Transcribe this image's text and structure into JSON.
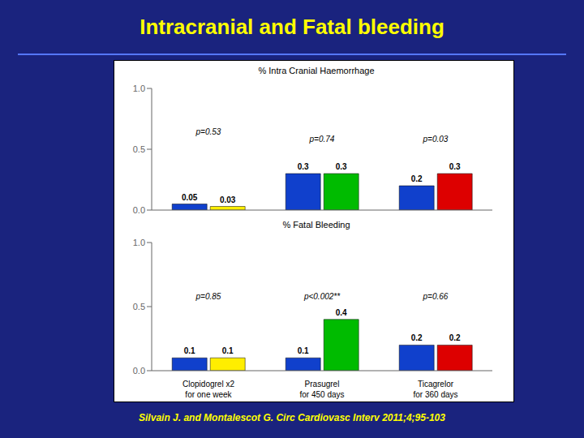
{
  "title": "Intracranial and Fatal bleeding",
  "subtitle": "Silvain J. and Montalescot G. Circ Cardiovasc Interv 2011;4;95-103",
  "chart_data": [
    {
      "type": "bar",
      "title": "% Intra Cranial Haemorrhage",
      "categories": [
        null,
        null,
        null
      ],
      "series": [
        {
          "values": [
            0.05,
            0.3,
            0.2
          ],
          "colors": [
            "#1040CC",
            "#1040CC",
            "#1040CC"
          ]
        },
        {
          "values": [
            0.03,
            0.3,
            0.3
          ],
          "colors": [
            "#FFEE00",
            "#00BB00",
            "#DD0000"
          ]
        }
      ],
      "data_labels": true,
      "grid": false,
      "annotations": [
        {
          "text": "p=0.53",
          "y": 0.58
        },
        {
          "text": "p=0.74",
          "y": 0.52
        },
        {
          "text": "p=0.03",
          "y": 0.52
        }
      ],
      "ylim": [
        0,
        1.0
      ],
      "yticks": [
        {
          "value": 0.0,
          "label": "0.0"
        },
        {
          "value": 0.5,
          "label": "0.5"
        },
        {
          "value": 1.0,
          "label": "1.0"
        }
      ]
    },
    {
      "type": "bar",
      "title": "% Fatal Bleeding",
      "categories": [
        "Clopidogrel x2\nfor one week",
        "Prasugrel\nfor 450 days",
        "Ticagrelor\nfor 360 days"
      ],
      "series": [
        {
          "values": [
            0.1,
            0.1,
            0.2
          ],
          "colors": [
            "#1040CC",
            "#1040CC",
            "#1040CC"
          ]
        },
        {
          "values": [
            0.1,
            0.4,
            0.2
          ],
          "colors": [
            "#FFEE00",
            "#00BB00",
            "#DD0000"
          ]
        }
      ],
      "data_labels": true,
      "grid": false,
      "annotations": [
        {
          "text": "p=0.85",
          "y": 0.52
        },
        {
          "text": "p<0.002**",
          "y": 0.52
        },
        {
          "text": "p=0.66",
          "y": 0.52
        }
      ],
      "ylim": [
        0,
        1.0
      ],
      "yticks": [
        {
          "value": 0.0,
          "label": "0.0"
        },
        {
          "value": 0.5,
          "label": "0.5"
        },
        {
          "value": 1.0,
          "label": "1.0"
        }
      ]
    }
  ]
}
